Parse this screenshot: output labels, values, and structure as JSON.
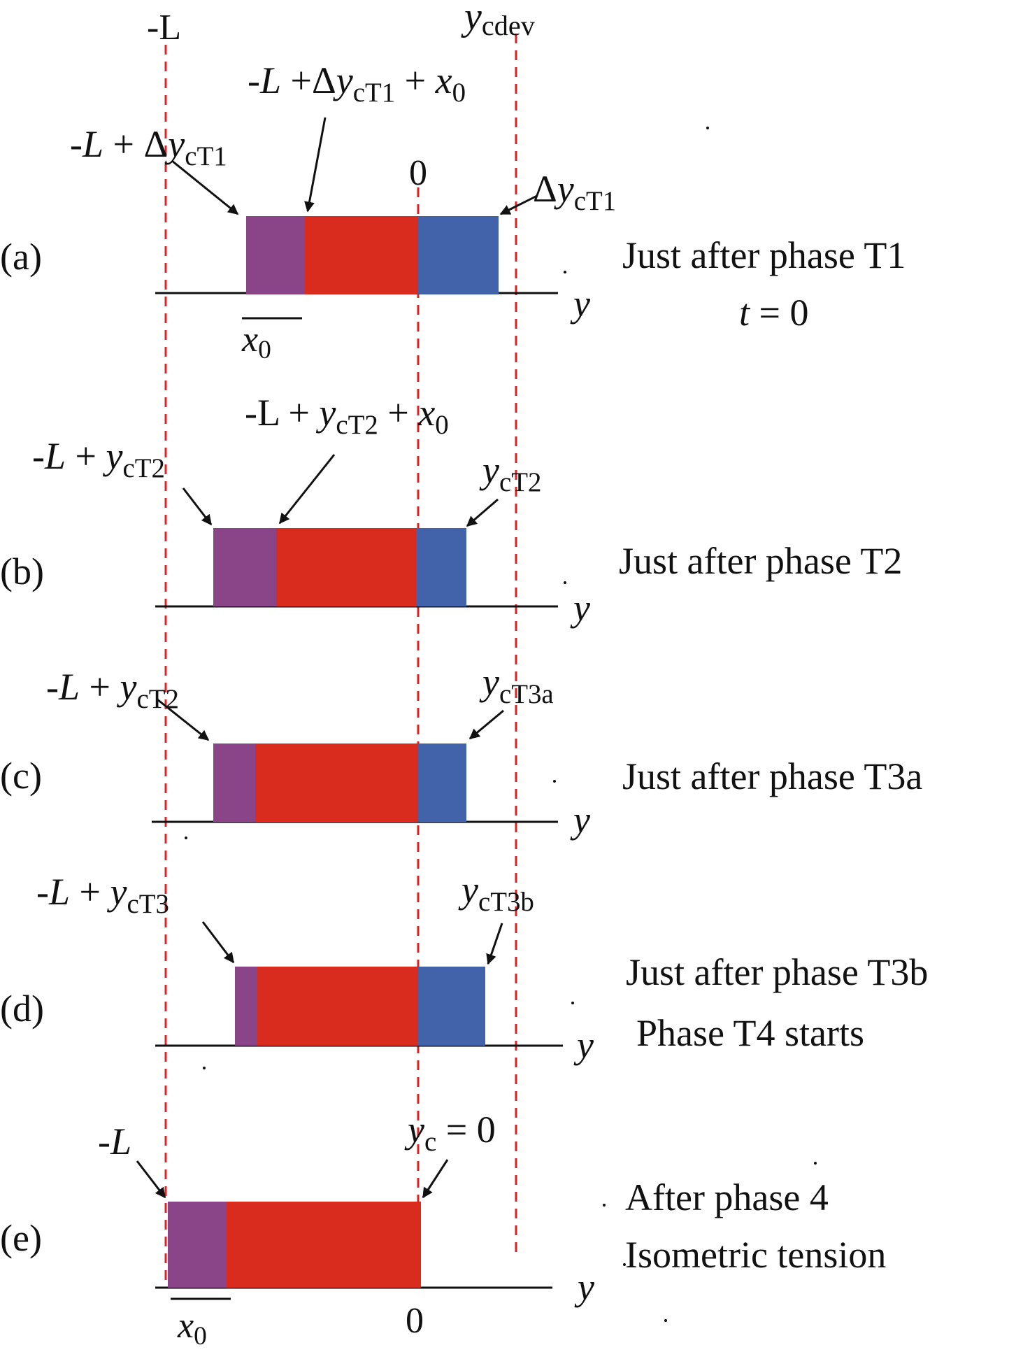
{
  "diagram": {
    "colors": {
      "purple": "#8a4488",
      "red": "#d92b1e",
      "blue": "#4262a9",
      "dashed_guide": "#dd2222",
      "axis": "#111111"
    },
    "top_labels": {
      "minus_L": "-L",
      "ycdev": "ycdev"
    },
    "panels": [
      {
        "id": "a",
        "panel_label": "(a)",
        "axis_label": "y",
        "caption": "Just after phase T1",
        "caption2": "t = 0",
        "labels": {
          "left_edge": "-L + ΔycT1",
          "mid_edge": "-L +ΔycT1 + x0",
          "zero": "0",
          "right_edge": "ΔycT1",
          "x0": "x0"
        }
      },
      {
        "id": "b",
        "panel_label": "(b)",
        "axis_label": "y",
        "caption": "Just after phase T2",
        "labels": {
          "left_edge": "-L + ycT2",
          "mid_edge": "-L + ycT2 + x0",
          "right_edge": "ycT2"
        }
      },
      {
        "id": "c",
        "panel_label": "(c)",
        "axis_label": "y",
        "caption": "Just after phase T3a",
        "labels": {
          "left_edge": "-L + ycT2",
          "right_edge": "ycT3a"
        }
      },
      {
        "id": "d",
        "panel_label": "(d)",
        "axis_label": "y",
        "caption": "Just after phase T3b",
        "caption2": "Phase T4 starts",
        "labels": {
          "left_edge": "-L + ycT3",
          "right_edge": "ycT3b"
        }
      },
      {
        "id": "e",
        "panel_label": "(e)",
        "axis_label": "y",
        "caption": "After phase 4",
        "caption2": "Isometric tension",
        "labels": {
          "left_edge": "-L",
          "right_edge": "yc = 0",
          "zero": "0",
          "x0": "x0"
        }
      }
    ]
  }
}
